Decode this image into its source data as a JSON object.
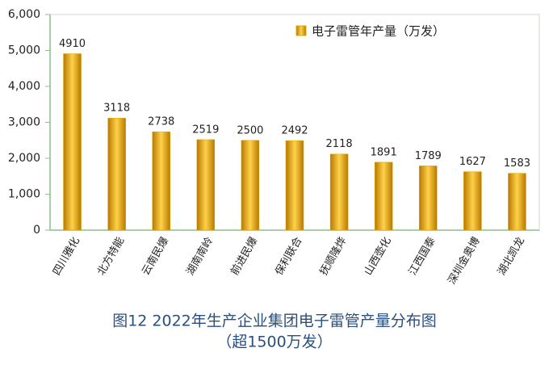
{
  "chart_data": {
    "type": "bar",
    "title": "图12 2022年生产企业集团电子雷管产量分布图",
    "subtitle": "（超1500万发）",
    "categories": [
      "四川雅化",
      "北方特能",
      "云南民爆",
      "湖南南岭",
      "前进民爆",
      "保利联合",
      "抚顺隆烨",
      "山西壶化",
      "江西国泰",
      "深圳金奥博",
      "湖北凯龙"
    ],
    "series": [
      {
        "name": "电子雷管年产量（万发）",
        "color": "#e0a800",
        "values": [
          4910,
          3118,
          2738,
          2519,
          2500,
          2492,
          2118,
          1891,
          1789,
          1627,
          1583
        ]
      }
    ],
    "ylim": [
      0,
      6000
    ],
    "yticks": [
      0,
      {
        "value": 1000,
        "label": "1,000"
      },
      {
        "value": 2000,
        "label": "2,000"
      },
      {
        "value": 3000,
        "label": "3,000"
      },
      {
        "value": 4000,
        "label": "4,000"
      },
      {
        "value": 5000,
        "label": "5,000"
      },
      {
        "value": 6000,
        "label": "6,000"
      }
    ],
    "grid": false,
    "legend": "top-right"
  }
}
